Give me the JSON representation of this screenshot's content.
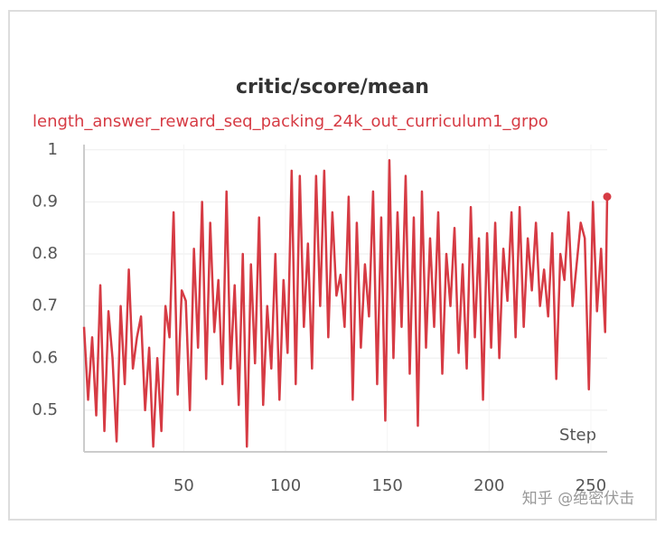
{
  "chart_data": {
    "type": "line",
    "title": "critic/score/mean",
    "x_label": "Step",
    "watermark": "知乎 @绝密伏击",
    "xlim": [
      1,
      258
    ],
    "xticks": [
      50,
      100,
      150,
      200,
      250
    ],
    "ylim": [
      0.42,
      1.01
    ],
    "yticks": [
      0.5,
      0.6,
      0.7,
      0.8,
      0.9,
      1
    ],
    "grid": true,
    "x": [
      1,
      3,
      5,
      7,
      9,
      11,
      13,
      15,
      17,
      19,
      21,
      23,
      25,
      27,
      29,
      31,
      33,
      35,
      37,
      39,
      41,
      43,
      45,
      47,
      49,
      51,
      53,
      55,
      57,
      59,
      61,
      63,
      65,
      67,
      69,
      71,
      73,
      75,
      77,
      79,
      81,
      83,
      85,
      87,
      89,
      91,
      93,
      95,
      97,
      99,
      101,
      103,
      105,
      107,
      109,
      111,
      113,
      115,
      117,
      119,
      121,
      123,
      125,
      127,
      129,
      131,
      133,
      135,
      137,
      139,
      141,
      143,
      145,
      147,
      149,
      151,
      153,
      155,
      157,
      159,
      161,
      163,
      165,
      167,
      169,
      171,
      173,
      175,
      177,
      179,
      181,
      183,
      185,
      187,
      189,
      191,
      193,
      195,
      197,
      199,
      201,
      203,
      205,
      207,
      209,
      211,
      213,
      215,
      217,
      219,
      221,
      223,
      225,
      227,
      229,
      231,
      233,
      235,
      237,
      239,
      241,
      243,
      245,
      247,
      249,
      251,
      253,
      255,
      257,
      258
    ],
    "series": [
      {
        "name": "length_answer_reward_seq_packing_24k_out_curriculum1_grpo",
        "color": "#d63b44",
        "values": [
          0.66,
          0.52,
          0.64,
          0.49,
          0.74,
          0.46,
          0.69,
          0.6,
          0.44,
          0.7,
          0.55,
          0.77,
          0.58,
          0.64,
          0.68,
          0.5,
          0.62,
          0.43,
          0.6,
          0.46,
          0.7,
          0.64,
          0.88,
          0.53,
          0.73,
          0.71,
          0.5,
          0.81,
          0.62,
          0.9,
          0.56,
          0.86,
          0.65,
          0.75,
          0.55,
          0.92,
          0.58,
          0.74,
          0.51,
          0.8,
          0.43,
          0.78,
          0.59,
          0.87,
          0.51,
          0.7,
          0.58,
          0.8,
          0.52,
          0.75,
          0.61,
          0.96,
          0.55,
          0.95,
          0.66,
          0.82,
          0.58,
          0.95,
          0.7,
          0.96,
          0.64,
          0.88,
          0.72,
          0.76,
          0.66,
          0.91,
          0.52,
          0.86,
          0.62,
          0.78,
          0.68,
          0.92,
          0.55,
          0.87,
          0.48,
          0.98,
          0.6,
          0.88,
          0.66,
          0.95,
          0.57,
          0.87,
          0.47,
          0.92,
          0.62,
          0.83,
          0.66,
          0.88,
          0.57,
          0.8,
          0.7,
          0.85,
          0.61,
          0.78,
          0.58,
          0.89,
          0.64,
          0.83,
          0.52,
          0.84,
          0.62,
          0.86,
          0.6,
          0.81,
          0.71,
          0.88,
          0.64,
          0.89,
          0.66,
          0.83,
          0.73,
          0.86,
          0.7,
          0.77,
          0.68,
          0.84,
          0.56,
          0.8,
          0.75,
          0.88,
          0.7,
          0.78,
          0.86,
          0.83,
          0.54,
          0.9,
          0.69,
          0.81,
          0.65,
          0.91
        ]
      }
    ]
  }
}
